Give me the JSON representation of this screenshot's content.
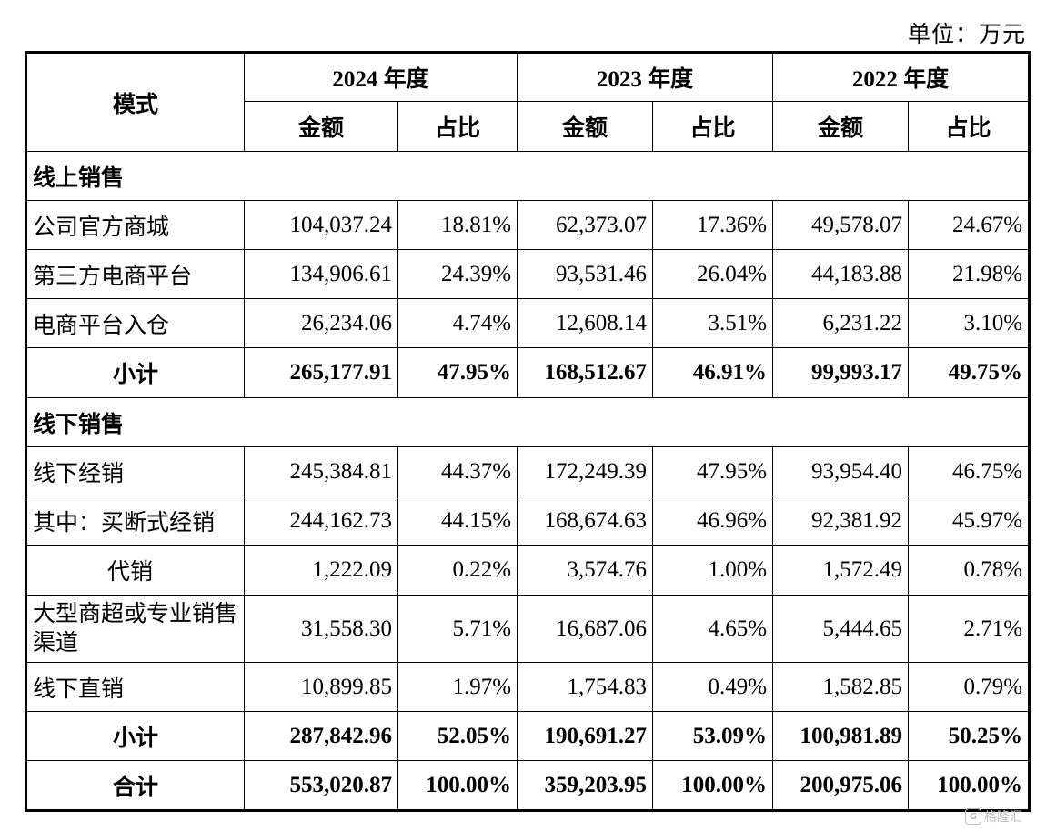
{
  "unit_label": "单位：万元",
  "header": {
    "mode": "模式",
    "years": [
      "2024 年度",
      "2023 年度",
      "2022 年度"
    ],
    "amount": "金额",
    "ratio": "占比"
  },
  "online": {
    "title": "线上销售",
    "rows": [
      {
        "label": "公司官方商城",
        "v": [
          "104,037.24",
          "18.81%",
          "62,373.07",
          "17.36%",
          "49,578.07",
          "24.67%"
        ]
      },
      {
        "label": "第三方电商平台",
        "v": [
          "134,906.61",
          "24.39%",
          "93,531.46",
          "26.04%",
          "44,183.88",
          "21.98%"
        ]
      },
      {
        "label": "电商平台入仓",
        "v": [
          "26,234.06",
          "4.74%",
          "12,608.14",
          "3.51%",
          "6,231.22",
          "3.10%"
        ]
      }
    ],
    "subtotal": {
      "label": "小计",
      "v": [
        "265,177.91",
        "47.95%",
        "168,512.67",
        "46.91%",
        "99,993.17",
        "49.75%"
      ]
    }
  },
  "offline": {
    "title": "线下销售",
    "rows": [
      {
        "label": "线下经销",
        "v": [
          "245,384.81",
          "44.37%",
          "172,249.39",
          "47.95%",
          "93,954.40",
          "46.75%"
        ]
      },
      {
        "label": "其中：买断式经销",
        "v": [
          "244,162.73",
          "44.15%",
          "168,674.63",
          "46.96%",
          "92,381.92",
          "45.97%"
        ]
      },
      {
        "label": "代销",
        "v": [
          "1,222.09",
          "0.22%",
          "3,574.76",
          "1.00%",
          "1,572.49",
          "0.78%"
        ]
      },
      {
        "label": "大型商超或专业销售渠道",
        "v": [
          "31,558.30",
          "5.71%",
          "16,687.06",
          "4.65%",
          "5,444.65",
          "2.71%"
        ]
      },
      {
        "label": "线下直销",
        "v": [
          "10,899.85",
          "1.97%",
          "1,754.83",
          "0.49%",
          "1,582.85",
          "0.79%"
        ]
      }
    ],
    "subtotal": {
      "label": "小计",
      "v": [
        "287,842.96",
        "52.05%",
        "190,691.27",
        "53.09%",
        "100,981.89",
        "50.25%"
      ]
    }
  },
  "total": {
    "label": "合计",
    "v": [
      "553,020.87",
      "100.00%",
      "359,203.95",
      "100.00%",
      "200,975.06",
      "100.00%"
    ]
  },
  "watermark": {
    "icon": "G",
    "text": "格隆汇"
  }
}
